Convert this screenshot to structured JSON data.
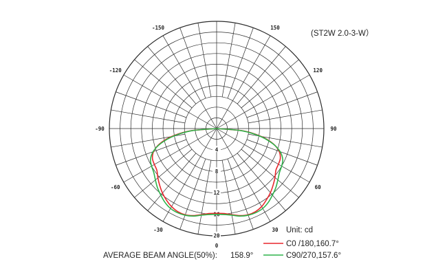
{
  "chart_data": {
    "type": "polar",
    "title": "(ST2W 2.0-3-W）",
    "unit_label": "Unit:  cd",
    "average_beam_angle_label": "AVERAGE BEAM ANGLE(50%):",
    "average_beam_angle_value": "158.9°",
    "angle_ticks": [
      {
        "angle": -150,
        "label": "-150"
      },
      {
        "angle": 150,
        "label": "150"
      },
      {
        "angle": -120,
        "label": "-120"
      },
      {
        "angle": 120,
        "label": "120"
      },
      {
        "angle": -90,
        "label": "-90"
      },
      {
        "angle": 90,
        "label": "90"
      },
      {
        "angle": -60,
        "label": "-60"
      },
      {
        "angle": 60,
        "label": "60"
      },
      {
        "angle": -30,
        "label": "-30"
      },
      {
        "angle": 30,
        "label": "30"
      },
      {
        "angle": 0,
        "label": "0"
      }
    ],
    "radial_ticks": [
      {
        "value": 4,
        "label": "4"
      },
      {
        "value": 8,
        "label": "8"
      },
      {
        "value": 12,
        "label": "12"
      },
      {
        "value": 16,
        "label": "16"
      },
      {
        "value": 20,
        "label": "20"
      }
    ],
    "r_max": 20,
    "series": [
      {
        "name": "C0  /180,160.7°",
        "color": "#e8262b",
        "points": [
          [
            -90,
            0
          ],
          [
            -85,
            5.0
          ],
          [
            -80,
            8.5
          ],
          [
            -75,
            11.0
          ],
          [
            -70,
            12.5
          ],
          [
            -65,
            13.2
          ],
          [
            -60,
            13.4
          ],
          [
            -55,
            13.6
          ],
          [
            -50,
            14.3
          ],
          [
            -45,
            15.0
          ],
          [
            -40,
            15.7
          ],
          [
            -35,
            16.3
          ],
          [
            -30,
            16.8
          ],
          [
            -25,
            17.1
          ],
          [
            -20,
            17.1
          ],
          [
            -15,
            16.8
          ],
          [
            -10,
            16.3
          ],
          [
            -5,
            15.9
          ],
          [
            0,
            15.8
          ],
          [
            5,
            15.9
          ],
          [
            10,
            16.3
          ],
          [
            15,
            16.8
          ],
          [
            20,
            17.1
          ],
          [
            25,
            17.1
          ],
          [
            30,
            16.8
          ],
          [
            35,
            16.2
          ],
          [
            40,
            15.6
          ],
          [
            45,
            14.9
          ],
          [
            50,
            14.2
          ],
          [
            55,
            13.5
          ],
          [
            60,
            13.3
          ],
          [
            65,
            13.1
          ],
          [
            70,
            12.4
          ],
          [
            75,
            10.9
          ],
          [
            80,
            8.4
          ],
          [
            85,
            5.0
          ],
          [
            90,
            0
          ]
        ]
      },
      {
        "name": "C90/270,157.6°",
        "color": "#2db34a",
        "points": [
          [
            -90,
            0
          ],
          [
            -85,
            4.7
          ],
          [
            -80,
            8.2
          ],
          [
            -75,
            10.8
          ],
          [
            -70,
            12.6
          ],
          [
            -65,
            13.6
          ],
          [
            -60,
            14.0
          ],
          [
            -55,
            14.3
          ],
          [
            -50,
            14.9
          ],
          [
            -45,
            15.6
          ],
          [
            -40,
            16.2
          ],
          [
            -35,
            16.8
          ],
          [
            -30,
            17.2
          ],
          [
            -25,
            17.3
          ],
          [
            -20,
            17.2
          ],
          [
            -15,
            16.9
          ],
          [
            -10,
            16.4
          ],
          [
            -5,
            16.1
          ],
          [
            0,
            16.0
          ],
          [
            5,
            16.1
          ],
          [
            10,
            16.4
          ],
          [
            15,
            16.9
          ],
          [
            20,
            17.2
          ],
          [
            25,
            17.3
          ],
          [
            30,
            17.2
          ],
          [
            35,
            16.8
          ],
          [
            40,
            16.2
          ],
          [
            45,
            15.6
          ],
          [
            50,
            14.9
          ],
          [
            55,
            14.3
          ],
          [
            60,
            14.0
          ],
          [
            65,
            13.6
          ],
          [
            70,
            12.6
          ],
          [
            75,
            10.8
          ],
          [
            80,
            8.2
          ],
          [
            85,
            4.7
          ],
          [
            90,
            0
          ]
        ]
      }
    ],
    "grid": true,
    "legend_position": "bottom-right"
  }
}
